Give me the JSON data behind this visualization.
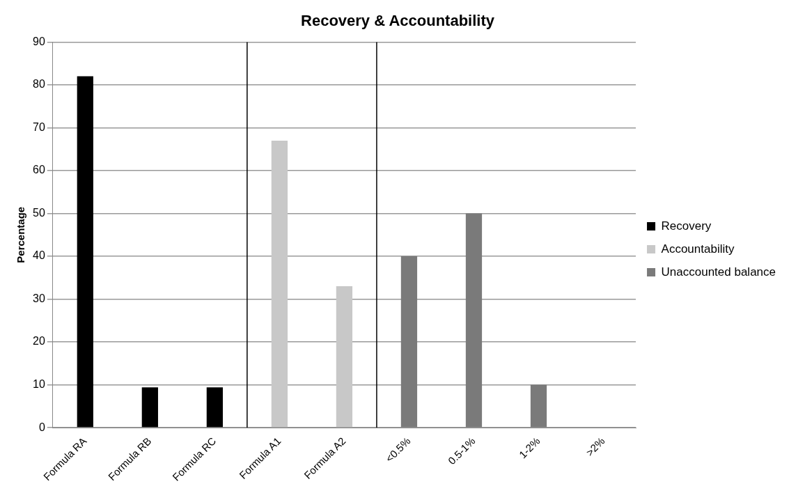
{
  "chart_data": {
    "type": "bar",
    "title": "Recovery & Accountability",
    "ylabel": "Percentage",
    "categories": [
      "Formula RA",
      "Formula RB",
      "Formula RC",
      "Formula A1",
      "Formula A2",
      "<0.5%",
      "0.5-1%",
      "1-2%",
      ">2%"
    ],
    "series": [
      {
        "name": "Recovery",
        "color": "#000000",
        "values": [
          82,
          9.4,
          9.4,
          null,
          null,
          null,
          null,
          null,
          null
        ]
      },
      {
        "name": "Accountability",
        "color": "#c8c8c8",
        "values": [
          null,
          null,
          null,
          67,
          33,
          null,
          null,
          null,
          null
        ]
      },
      {
        "name": "Unaccounted balance",
        "color": "#7a7a7a",
        "values": [
          null,
          null,
          null,
          null,
          null,
          40,
          50,
          10,
          null
        ]
      }
    ],
    "ylim": [
      0,
      90
    ],
    "yticks": [
      0,
      10,
      20,
      30,
      40,
      50,
      60,
      70,
      80,
      90
    ],
    "grid": "y",
    "legend": "right"
  }
}
